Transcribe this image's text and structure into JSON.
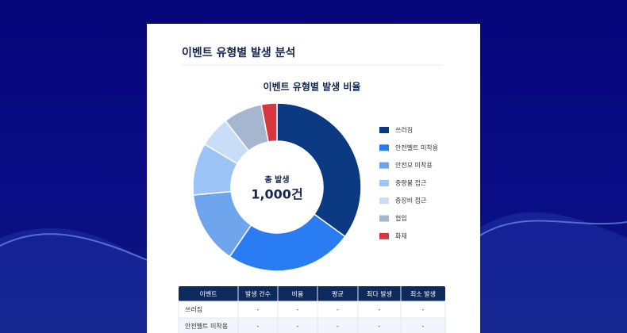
{
  "header": {
    "title": "이벤트 유형별 발생 분석"
  },
  "chart_data": {
    "type": "donut",
    "title": "이벤트 유형별 발생 비율",
    "center_label": "총 발생",
    "center_value": "1,000건",
    "categories": [
      "쓰러짐",
      "안전벨트 미착용",
      "안전모 미착용",
      "중량물 접근",
      "중장비 접근",
      "협입",
      "화재"
    ],
    "values": [
      350,
      245,
      140,
      100,
      60,
      75,
      30
    ],
    "colors": [
      "#0b3a82",
      "#2a7cf3",
      "#6ea5ec",
      "#9cc4f6",
      "#c9ddf9",
      "#a5b6cf",
      "#d8373f"
    ]
  },
  "table": {
    "columns": [
      "이벤트",
      "발생 건수",
      "비율",
      "평균",
      "최다 발생",
      "최소 발생"
    ],
    "rows": [
      [
        "쓰러짐",
        "-",
        "-",
        "-",
        "-",
        "-"
      ],
      [
        "안전벨트 미착용",
        "-",
        "-",
        "-",
        "-",
        "-"
      ]
    ]
  }
}
